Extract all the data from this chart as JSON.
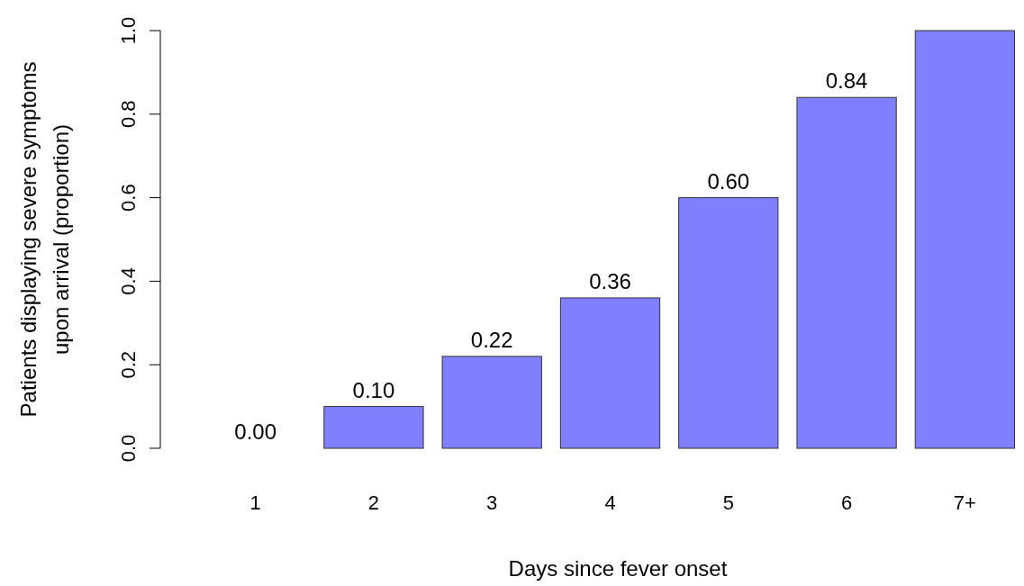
{
  "chart_data": {
    "type": "bar",
    "xlabel": "Days since fever onset",
    "ylabel": "Patients displaying severe symptoms\nupon arrival (proportion)",
    "categories": [
      "1",
      "2",
      "3",
      "4",
      "5",
      "6",
      "7+"
    ],
    "values": [
      0.0,
      0.1,
      0.22,
      0.36,
      0.6,
      0.84,
      1.0
    ],
    "value_labels": [
      "0.00",
      "0.10",
      "0.22",
      "0.36",
      "0.60",
      "0.84",
      null
    ],
    "color": "#8080ff",
    "ylim": [
      0,
      1
    ],
    "yticks": [
      {
        "value": 0,
        "label": "0.0"
      },
      {
        "value": 0.2,
        "label": "0.2"
      },
      {
        "value": 0.4,
        "label": "0.4"
      },
      {
        "value": 0.6,
        "label": "0.6"
      },
      {
        "value": 0.8,
        "label": "0.8"
      },
      {
        "value": 1,
        "label": "1.0"
      }
    ],
    "grid": false
  }
}
